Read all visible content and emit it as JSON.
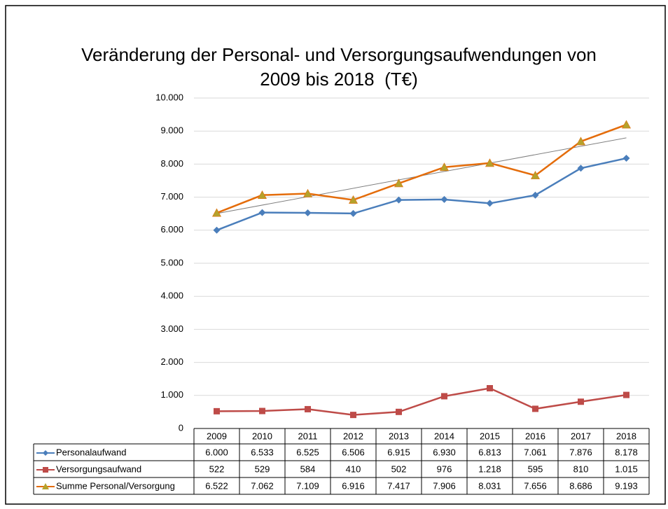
{
  "chart_data": {
    "type": "line",
    "title": [
      "Veränderung der Personal- und Versorgungsaufwendungen von",
      "2009 bis 2018  (T€)"
    ],
    "categories": [
      "2009",
      "2010",
      "2011",
      "2012",
      "2013",
      "2014",
      "2015",
      "2016",
      "2017",
      "2018"
    ],
    "series": [
      {
        "name": "Personalaufwand",
        "color": "#4a7ebb",
        "marker": "diamond",
        "values": [
          6000,
          6533,
          6525,
          6506,
          6915,
          6930,
          6813,
          7061,
          7876,
          8178
        ],
        "value_labels": [
          "6.000",
          "6.533",
          "6.525",
          "6.506",
          "6.915",
          "6.930",
          "6.813",
          "7.061",
          "7.876",
          "8.178"
        ]
      },
      {
        "name": "Versorgungsaufwand",
        "color": "#be4b48",
        "marker": "square",
        "values": [
          522,
          529,
          584,
          410,
          502,
          976,
          1218,
          595,
          810,
          1015
        ],
        "value_labels": [
          "522",
          "529",
          "584",
          "410",
          "502",
          "976",
          "1.218",
          "595",
          "810",
          "1.015"
        ]
      },
      {
        "name": "Summe Personal/Versorgung",
        "color": "#e46c0a",
        "marker": "triangle",
        "marker_color": "#b5a22c",
        "values": [
          6522,
          7062,
          7109,
          6916,
          7417,
          7906,
          8031,
          7656,
          8686,
          9193
        ],
        "value_labels": [
          "6.522",
          "7.062",
          "7.109",
          "6.916",
          "7.417",
          "7.906",
          "8.031",
          "7.656",
          "8.686",
          "9.193"
        ]
      }
    ],
    "trendline_series": 2,
    "ylim": [
      0,
      10000
    ],
    "yticks": [
      0,
      {
        "value": 1000,
        "label": "1.000"
      },
      {
        "value": 2000,
        "label": "2.000"
      },
      {
        "value": 3000,
        "label": "3.000"
      },
      {
        "value": 4000,
        "label": "4.000"
      },
      {
        "value": 5000,
        "label": "5.000"
      },
      {
        "value": 6000,
        "label": "6.000"
      },
      {
        "value": 7000,
        "label": "7.000"
      },
      {
        "value": 8000,
        "label": "8.000"
      },
      {
        "value": 9000,
        "label": "9.000"
      },
      {
        "value": 10000,
        "label": "10.000"
      }
    ],
    "grid": true,
    "data_table": true
  }
}
